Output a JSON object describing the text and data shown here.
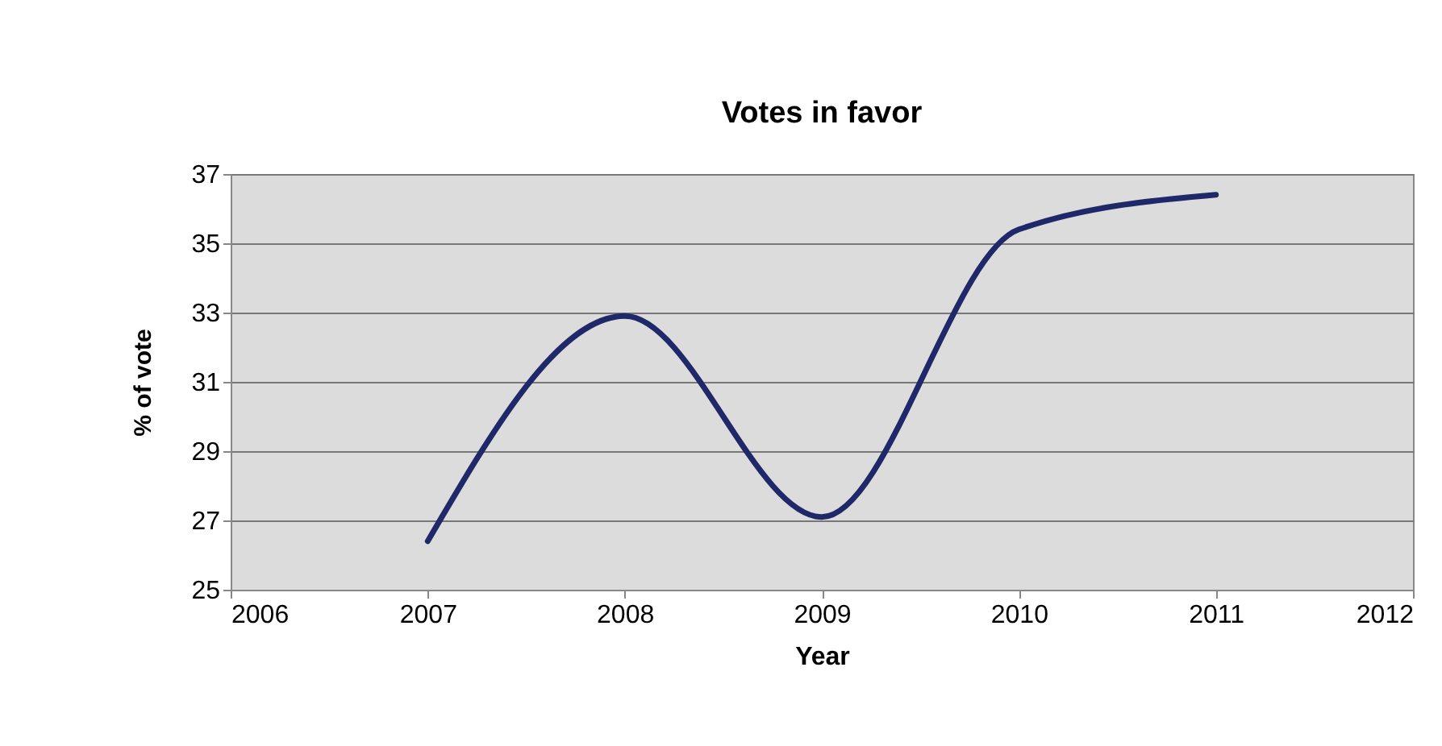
{
  "chart_data": {
    "type": "line",
    "title": "Votes in favor",
    "xlabel": "Year",
    "ylabel": "% of vote",
    "x": [
      2007,
      2008,
      2009,
      2010,
      2011
    ],
    "series": [
      {
        "color": "#1f2868",
        "values": [
          26.4,
          32.9,
          27.1,
          35.4,
          36.4
        ]
      }
    ],
    "xlim": [
      2006,
      2012
    ],
    "xticks": [
      2006,
      2007,
      2008,
      2009,
      2010,
      2011,
      2012
    ],
    "ylim": [
      25,
      37
    ],
    "yticks": [
      25,
      27,
      29,
      31,
      33,
      35,
      37
    ],
    "grid": "y",
    "marker": "none",
    "line_style": "solid"
  }
}
